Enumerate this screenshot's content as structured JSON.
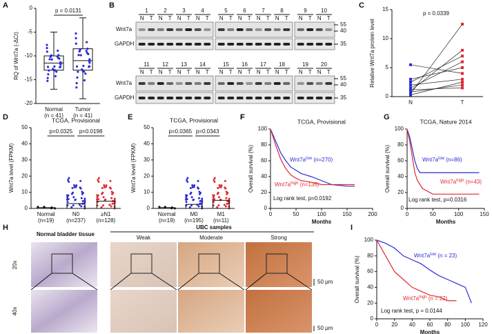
{
  "panels": {
    "A": {
      "letter": "A",
      "ylabel": "RQ of Wnt7a (-ΔCt)",
      "ylim": [
        -20,
        0
      ],
      "yticks": [
        -20,
        -15,
        -10,
        -5,
        0
      ],
      "pvalue": "p = 0.0131",
      "groups": [
        {
          "name": "Normal",
          "n": "(n = 41)",
          "box": [
            -13,
            -11.5,
            -10
          ],
          "whisker": [
            -17,
            -5
          ]
        },
        {
          "name": "Tumor",
          "n": "(n = 41)",
          "box": [
            -13,
            -11,
            -8.5
          ],
          "whisker": [
            -19,
            -2
          ]
        }
      ]
    },
    "B": {
      "letter": "B",
      "lanes": [
        "1",
        "2",
        "3",
        "4",
        "5",
        "6",
        "7",
        "8",
        "9",
        "10",
        "11",
        "12",
        "13",
        "14",
        "15",
        "16",
        "17",
        "18",
        "19",
        "20"
      ],
      "lane_labels": [
        "N",
        "T"
      ],
      "rows": [
        "Wnt7a",
        "GAPDH"
      ],
      "markers": [
        "55",
        "40",
        "35"
      ]
    },
    "C": {
      "letter": "C",
      "ylabel": "Relative Wnt7a protein level",
      "ylim": [
        0,
        15
      ],
      "yticks": [
        0,
        5,
        10,
        15
      ],
      "pvalue": "p = 0.0339",
      "categories": [
        "N",
        "T"
      ],
      "N": [
        0.5,
        1,
        1.5,
        2,
        3,
        5.5,
        0.8,
        1.2,
        2.5,
        0.3
      ],
      "T": [
        12.5,
        8,
        6,
        3,
        5,
        4,
        2,
        1.5,
        7,
        2.5
      ]
    },
    "D": {
      "letter": "D",
      "title": "TCGA, Provisional",
      "ylabel": "Wnt7a level (FPKM)",
      "ylim": [
        0,
        50
      ],
      "yticks": [
        0,
        10,
        20,
        30,
        40,
        50
      ],
      "pvalues": [
        "p=0.0325",
        "p=0.0198"
      ],
      "groups": [
        {
          "name": "Normal",
          "n": "(n=19)",
          "mean": 0.5,
          "color": "#111111"
        },
        {
          "name": "N0",
          "n": "(n=237)",
          "mean": 3,
          "color": "#2b2bd6"
        },
        {
          "name": "≥N1",
          "n": "(n=128)",
          "mean": 4.5,
          "color": "#e0282f"
        }
      ]
    },
    "E": {
      "letter": "E",
      "title": "TCGA, Provisional",
      "ylabel": "Wnt7a level (FPKM)",
      "ylim": [
        0,
        50
      ],
      "yticks": [
        0,
        10,
        20,
        30,
        40,
        50
      ],
      "pvalues": [
        "p=0.0365",
        "p=0.0343"
      ],
      "groups": [
        {
          "name": "Normal",
          "n": "(n=19)",
          "mean": 0.5,
          "color": "#111111"
        },
        {
          "name": "M0",
          "n": "(n=195)",
          "mean": 2.5,
          "color": "#2b2bd6"
        },
        {
          "name": "M1",
          "n": "(n=11)",
          "mean": 5,
          "color": "#e0282f"
        }
      ]
    },
    "F": {
      "letter": "F",
      "title": "TCGA, Provisional",
      "ylabel": "Overall survival (%)",
      "xlabel": "Months",
      "xlim": [
        0,
        200
      ],
      "xticks": [
        0,
        50,
        100,
        150,
        200
      ],
      "ylim": [
        0,
        100
      ],
      "yticks": [
        0,
        20,
        40,
        60,
        80,
        100
      ],
      "test": "Log rank test, p=0.0192",
      "series": [
        {
          "name": "Wnt7a",
          "sup": "low",
          "n": " (n=270)",
          "color": "#2b2bd6",
          "x": [
            0,
            10,
            20,
            30,
            40,
            50,
            60,
            80,
            100,
            120,
            150,
            165
          ],
          "values": [
            100,
            85,
            70,
            60,
            52,
            48,
            44,
            40,
            35,
            30,
            28,
            28
          ]
        },
        {
          "name": "Wnt7a",
          "sup": "high",
          "n": " (n=135)",
          "color": "#e0282f",
          "x": [
            0,
            10,
            20,
            30,
            40,
            50,
            60,
            80,
            100,
            120,
            150,
            165
          ],
          "values": [
            100,
            80,
            62,
            50,
            42,
            38,
            35,
            33,
            30,
            30,
            30,
            30
          ]
        }
      ]
    },
    "G": {
      "letter": "G",
      "title": "TCGA, Nature 2014",
      "ylabel": "Overall survival (%)",
      "xlabel": "Months",
      "xlim": [
        0,
        150
      ],
      "xticks": [
        0,
        50,
        100,
        150
      ],
      "ylim": [
        0,
        100
      ],
      "yticks": [
        0,
        20,
        40,
        60,
        80,
        100
      ],
      "test": "Log rank test, p=0.0316",
      "series": [
        {
          "name": "Wnt7a",
          "sup": "low",
          "n": " (n=86)",
          "color": "#2b2bd6",
          "x": [
            0,
            5,
            10,
            15,
            20,
            25,
            30,
            140
          ],
          "values": [
            100,
            90,
            75,
            60,
            50,
            45,
            45,
            45
          ]
        },
        {
          "name": "Wnt7a",
          "sup": "high",
          "n": " (n=43)",
          "color": "#e0282f",
          "x": [
            0,
            5,
            10,
            15,
            20,
            25,
            30,
            50,
            70,
            140
          ],
          "values": [
            100,
            85,
            65,
            45,
            35,
            30,
            25,
            18,
            18,
            18
          ]
        }
      ]
    },
    "H": {
      "letter": "H",
      "normal": "Normal bladder tissue",
      "ubc": "UBC samples",
      "columns": [
        "Weak",
        "Moderate",
        "Strong"
      ],
      "rows": [
        "20x",
        "40x"
      ],
      "scale": "50 μm"
    },
    "I": {
      "letter": "I",
      "ylabel": "Overall survival (%)",
      "xlabel": "Months",
      "xlim": [
        0,
        120
      ],
      "xticks": [
        0,
        20,
        40,
        60,
        80,
        100,
        120
      ],
      "ylim": [
        0,
        100
      ],
      "yticks": [
        0,
        20,
        40,
        60,
        80,
        100
      ],
      "test": "Log rank test, p = 0.0144",
      "series": [
        {
          "name": "Wnt7a",
          "sup": "low",
          "n": " (n = 23)",
          "color": "#2b2bd6",
          "x": [
            0,
            10,
            20,
            30,
            40,
            50,
            60,
            70,
            80,
            90,
            100,
            107
          ],
          "values": [
            100,
            96,
            90,
            80,
            75,
            70,
            62,
            55,
            50,
            45,
            40,
            20
          ]
        },
        {
          "name": "Wnt7a",
          "sup": "high",
          "n": " (n = 22)",
          "color": "#e0282f",
          "x": [
            0,
            5,
            10,
            15,
            20,
            30,
            40,
            50,
            60,
            70,
            80,
            90
          ],
          "values": [
            100,
            90,
            80,
            70,
            60,
            50,
            40,
            35,
            30,
            28,
            23,
            23
          ]
        }
      ]
    }
  }
}
